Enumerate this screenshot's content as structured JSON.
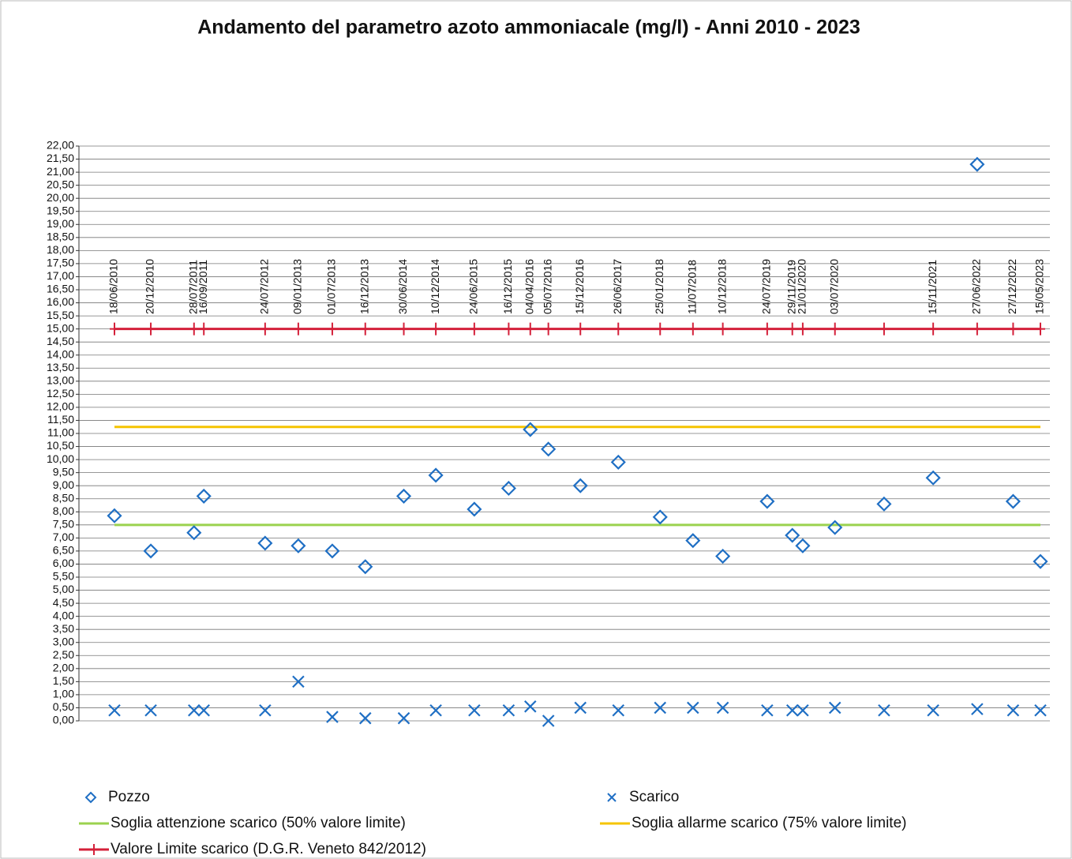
{
  "chart_data": {
    "type": "scatter",
    "title": "Andamento del parametro azoto ammoniacale (mg/l) - Anni 2010 - 2023",
    "categories": [
      "18/06/2010",
      "20/12/2010",
      "28/07/2011",
      "16/09/2011",
      "24/07/2012",
      "09/01/2013",
      "01/07/2013",
      "16/12/2013",
      "30/06/2014",
      "10/12/2014",
      "24/06/2015",
      "16/12/2015",
      "04/04/2016",
      "05/07/2016",
      "15/12/2016",
      "26/06/2017",
      "25/01/2018",
      "11/07/2018",
      "10/12/2018",
      "24/07/2019",
      "29/11/2019",
      "21/01/2020",
      "03/07/2020",
      null,
      "15/11/2021",
      "27/06/2022",
      "27/12/2022",
      "15/05/2023"
    ],
    "series": [
      {
        "name": "Pozzo",
        "marker": "diamond",
        "color": "#1f6fc4",
        "values": [
          7.85,
          6.5,
          7.2,
          8.6,
          6.8,
          6.7,
          6.5,
          5.9,
          8.6,
          9.4,
          8.1,
          8.9,
          11.15,
          10.4,
          9.0,
          9.9,
          7.8,
          6.9,
          6.3,
          8.4,
          7.1,
          6.7,
          7.4,
          8.3,
          9.3,
          21.3,
          8.4,
          6.1
        ]
      },
      {
        "name": "Scarico",
        "marker": "x",
        "color": "#1f6fc4",
        "values": [
          0.4,
          0.4,
          0.4,
          0.4,
          0.4,
          1.5,
          0.15,
          0.1,
          0.1,
          0.4,
          0.4,
          0.4,
          0.55,
          0,
          0.5,
          0.4,
          0.5,
          0.5,
          0.5,
          0.4,
          0.4,
          0.4,
          0.5,
          0.4,
          0.4,
          0.45,
          0.4,
          0.4
        ]
      },
      {
        "name": "Soglia attenzione scarico (50% valore limite)",
        "marker": "line",
        "color": "#9bd24f",
        "values": [
          7.5,
          7.5,
          7.5,
          7.5,
          7.5,
          7.5,
          7.5,
          7.5,
          7.5,
          7.5,
          7.5,
          7.5,
          7.5,
          7.5,
          7.5,
          7.5,
          7.5,
          7.5,
          7.5,
          7.5,
          7.5,
          7.5,
          7.5,
          7.5,
          7.5,
          7.5,
          7.5,
          7.5
        ]
      },
      {
        "name": "Soglia allarme scarico (75% valore limite)",
        "marker": "line",
        "color": "#f5c400",
        "values": [
          11.25,
          11.25,
          11.25,
          11.25,
          11.25,
          11.25,
          11.25,
          11.25,
          11.25,
          11.25,
          11.25,
          11.25,
          11.25,
          11.25,
          11.25,
          11.25,
          11.25,
          11.25,
          11.25,
          11.25,
          11.25,
          11.25,
          11.25,
          11.25,
          11.25,
          11.25,
          11.25,
          11.25
        ]
      },
      {
        "name": "Valore Limite scarico (D.G.R. Veneto 842/2012)",
        "marker": "line-plus",
        "color": "#d4203a",
        "values": [
          15,
          15,
          15,
          15,
          15,
          15,
          15,
          15,
          15,
          15,
          15,
          15,
          15,
          15,
          15,
          15,
          15,
          15,
          15,
          15,
          15,
          15,
          15,
          15,
          15,
          15,
          15,
          15
        ]
      }
    ],
    "ylim": [
      0,
      22
    ],
    "yticks": [
      {
        "value": 0,
        "label": "0,00"
      },
      {
        "value": 0.5,
        "label": "0,50"
      },
      {
        "value": 1,
        "label": "1,00"
      },
      {
        "value": 1.5,
        "label": "1,50"
      },
      {
        "value": 2,
        "label": "2,00"
      },
      {
        "value": 2.5,
        "label": "2,50"
      },
      {
        "value": 3,
        "label": "3,00"
      },
      {
        "value": 3.5,
        "label": "3,50"
      },
      {
        "value": 4,
        "label": "4,00"
      },
      {
        "value": 4.5,
        "label": "4,50"
      },
      {
        "value": 5,
        "label": "5,00"
      },
      {
        "value": 5.5,
        "label": "5,50"
      },
      {
        "value": 6,
        "label": "6,00"
      },
      {
        "value": 6.5,
        "label": "6,50"
      },
      {
        "value": 7,
        "label": "7,00"
      },
      {
        "value": 7.5,
        "label": "7,50"
      },
      {
        "value": 8,
        "label": "8,00"
      },
      {
        "value": 8.5,
        "label": "8,50"
      },
      {
        "value": 9,
        "label": "9,00"
      },
      {
        "value": 9.5,
        "label": "9,50"
      },
      {
        "value": 10,
        "label": "10,00"
      },
      {
        "value": 10.5,
        "label": "10,50"
      },
      {
        "value": 11,
        "label": "11,00"
      },
      {
        "value": 11.5,
        "label": "11,50"
      },
      {
        "value": 12,
        "label": "12,00"
      },
      {
        "value": 12.5,
        "label": "12,50"
      },
      {
        "value": 13,
        "label": "13,00"
      },
      {
        "value": 13.5,
        "label": "13,50"
      },
      {
        "value": 14,
        "label": "14,00"
      },
      {
        "value": 14.5,
        "label": "14,50"
      },
      {
        "value": 15,
        "label": "15,00"
      },
      {
        "value": 15.5,
        "label": "15,50"
      },
      {
        "value": 16,
        "label": "16,00"
      },
      {
        "value": 16.5,
        "label": "16,50"
      },
      {
        "value": 17,
        "label": "17,00"
      },
      {
        "value": 17.5,
        "label": "17,50"
      },
      {
        "value": 18,
        "label": "18,00"
      },
      {
        "value": 18.5,
        "label": "18,50"
      },
      {
        "value": 19,
        "label": "19,00"
      },
      {
        "value": 19.5,
        "label": "19,50"
      },
      {
        "value": 20,
        "label": "20,00"
      },
      {
        "value": 20.5,
        "label": "20,50"
      },
      {
        "value": 21,
        "label": "21,00"
      },
      {
        "value": 21.5,
        "label": "21,50"
      },
      {
        "value": 22,
        "label": "22,00"
      }
    ],
    "grid": true,
    "legend": "bottom"
  }
}
